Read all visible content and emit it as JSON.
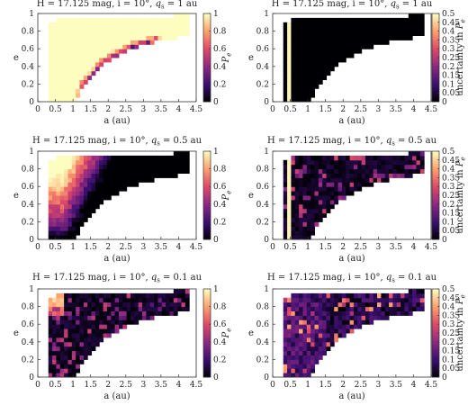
{
  "figure": {
    "rows": 3,
    "cols": 2
  },
  "colormap": {
    "name": "magma-like",
    "stops": [
      "#000004",
      "#3b0f70",
      "#8c2981",
      "#de4968",
      "#fe9f6d",
      "#fcfdbf"
    ]
  },
  "chart_data": [
    {
      "type": "heatmap",
      "panel": "r1-left",
      "title": "H = 17.125 mag, i = 10°, q_s = 1 au",
      "title_parts": {
        "pre": "H = 17.125 mag, i = 10°, ",
        "q": "q",
        "sub": "s",
        "post": " = 1 au"
      },
      "xlabel": "a (au)",
      "ylabel": "e",
      "xlim": [
        0,
        4.5
      ],
      "ylim": [
        0,
        1
      ],
      "xticks": [
        "0",
        "0.5",
        "1",
        "1.5",
        "2",
        "2.5",
        "3",
        "3.5",
        "4",
        "4.5"
      ],
      "yticks": [
        "0",
        "0.2",
        "0.4",
        "0.6",
        "0.8",
        "1"
      ],
      "colorbar": {
        "label_main": "P",
        "label_sub": "e",
        "range": [
          0,
          1
        ],
        "ticks": [
          "0",
          "0.2",
          "0.4",
          "0.6",
          "0.8",
          "1"
        ]
      },
      "value_description": "P_e about 1 (pale yellow) across the populated region; dark boundary band along lower edge from a≈1.2 (e≈0.1) to a≈3.3 (e≈0.65)",
      "boundary_band": [
        [
          1.2,
          0.1
        ],
        [
          1.5,
          0.22
        ],
        [
          2.0,
          0.38
        ],
        [
          2.5,
          0.5
        ],
        [
          3.0,
          0.58
        ],
        [
          3.35,
          0.65
        ]
      ]
    },
    {
      "type": "heatmap",
      "panel": "r1-right",
      "title": "H = 17.125 mag, i = 10°, q_s = 1 au",
      "title_parts": {
        "pre": "H = 17.125 mag, i = 10°, ",
        "q": "q",
        "sub": "s",
        "post": " = 1 au"
      },
      "xlabel": "a (au)",
      "ylabel": "e",
      "xlim": [
        0,
        4.5
      ],
      "ylim": [
        0,
        1
      ],
      "xticks": [
        "0",
        "0.5",
        "1",
        "1.5",
        "2",
        "2.5",
        "3",
        "3.5",
        "4",
        "4.5"
      ],
      "yticks": [
        "0",
        "0.2",
        "0.4",
        "0.6",
        "0.8",
        "1"
      ],
      "colorbar": {
        "label_main": "uncertainty in P",
        "label_sub": "e",
        "range": [
          0,
          0.5
        ],
        "ticks": [
          "0",
          "0.05",
          "0.1",
          "0.15",
          "0.2",
          "0.25",
          "0.3",
          "0.35",
          "0.4",
          "0.45",
          "0.5"
        ]
      },
      "value_description": "uncertainty about 0 nearly everywhere; yellow column at a≈0.4-0.5; small highlight near a≈2, e≈0.35"
    },
    {
      "type": "heatmap",
      "panel": "r2-left",
      "title": "H = 17.125 mag, i = 10°, q_s = 0.5 au",
      "title_parts": {
        "pre": "H = 17.125 mag, i = 10°, ",
        "q": "q",
        "sub": "s",
        "post": " = 0.5 au"
      },
      "xlabel": "a (au)",
      "ylabel": "e",
      "xlim": [
        0,
        4.5
      ],
      "ylim": [
        0,
        1
      ],
      "xticks": [
        "0",
        "0.5",
        "1",
        "1.5",
        "2",
        "2.5",
        "3",
        "3.5",
        "4",
        "4.5"
      ],
      "yticks": [
        "0",
        "0.2",
        "0.4",
        "0.6",
        "0.8",
        "1"
      ],
      "colorbar": {
        "label_main": "P",
        "label_sub": "e",
        "range": [
          0,
          1
        ],
        "ticks": [
          "0",
          "0.2",
          "0.4",
          "0.6",
          "0.8",
          "1"
        ]
      },
      "value_description": "P_e about 1 for a below ~0.8 au and high e; decreasing through orange/pink to near 0 toward larger a and lower e"
    },
    {
      "type": "heatmap",
      "panel": "r2-right",
      "title": "H = 17.125 mag, i = 10°, q_s = 0.5 au",
      "title_parts": {
        "pre": "H = 17.125 mag, i = 10°, ",
        "q": "q",
        "sub": "s",
        "post": " = 0.5 au"
      },
      "xlabel": "a (au)",
      "ylabel": "e",
      "xlim": [
        0,
        4.5
      ],
      "ylim": [
        0,
        1
      ],
      "xticks": [
        "0",
        "0.5",
        "1",
        "1.5",
        "2",
        "2.5",
        "3",
        "3.5",
        "4",
        "4.5"
      ],
      "yticks": [
        "0",
        "0.2",
        "0.4",
        "0.6",
        "0.8",
        "1"
      ],
      "colorbar": {
        "label_main": "uncertainty in P",
        "label_sub": "e",
        "range": [
          0,
          0.5
        ],
        "ticks": [
          "0",
          "0.05",
          "0.1",
          "0.15",
          "0.2",
          "0.25",
          "0.3",
          "0.35",
          "0.4",
          "0.45",
          "0.5"
        ]
      },
      "value_description": "uncertainty mostly below 0.1 with scattered purple cells up to ~0.25; yellow column at a≈0.4"
    },
    {
      "type": "heatmap",
      "panel": "r3-left",
      "title": "H = 17.125 mag, i = 10°, q_s = 0.1 au",
      "title_parts": {
        "pre": "H = 17.125 mag, i = 10°, ",
        "q": "q",
        "sub": "s",
        "post": " = 0.1 au"
      },
      "xlabel": "a (au)",
      "ylabel": "e",
      "xlim": [
        0,
        4.5
      ],
      "ylim": [
        0,
        1
      ],
      "xticks": [
        "0",
        "0.5",
        "1",
        "1.5",
        "2",
        "2.5",
        "3",
        "3.5",
        "4",
        "4.5"
      ],
      "yticks": [
        "0",
        "0.2",
        "0.4",
        "0.6",
        "0.8",
        "1"
      ],
      "colorbar": {
        "label_main": "P",
        "label_sub": "e",
        "range": [
          0,
          1
        ],
        "ticks": [
          "0",
          "0.2",
          "0.4",
          "0.6",
          "0.8",
          "1"
        ]
      },
      "value_description": "P_e about 1 only for a below ~0.7 at high e; mostly below 0.2 elsewhere with scattered purple cells"
    },
    {
      "type": "heatmap",
      "panel": "r3-right",
      "title": "H = 17.125 mag, i = 10°, q_s = 0.1 au",
      "title_parts": {
        "pre": "H = 17.125 mag, i = 10°, ",
        "q": "q",
        "sub": "s",
        "post": " = 0.1 au"
      },
      "xlabel": "a (au)",
      "ylabel": "e",
      "xlim": [
        0,
        4.5
      ],
      "ylim": [
        0,
        1
      ],
      "xticks": [
        "0",
        "0.5",
        "1",
        "1.5",
        "2",
        "2.5",
        "3",
        "3.5",
        "4",
        "4.5"
      ],
      "yticks": [
        "0",
        "0.2",
        "0.4",
        "0.6",
        "0.8",
        "1"
      ],
      "colorbar": {
        "label_main": "uncertainty in P",
        "label_sub": "e",
        "range": [
          0,
          0.5
        ],
        "ticks": [
          "0",
          "0.05",
          "0.1",
          "0.15",
          "0.2",
          "0.25",
          "0.3",
          "0.35",
          "0.4",
          "0.45",
          "0.5"
        ]
      },
      "value_description": "uncertainty mostly 0.05-0.2 with scattered brighter cells up to ~0.35, concentrated at a below 1.5"
    }
  ]
}
